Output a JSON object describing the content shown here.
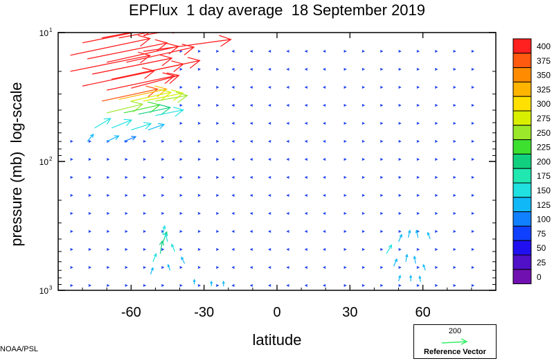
{
  "title": "EPFlux  1 day average  18 September 2019",
  "credit": "NOAA/PSL",
  "reference": {
    "value": "200",
    "label": "Reference Vector",
    "color": "#33ee66"
  },
  "chart_data": {
    "type": "vector-field",
    "title": "EPFlux  1 day average  18 September 2019",
    "xlabel": "latitude",
    "ylabel": "pressure (mb)  log-scale",
    "xlim": [
      -90,
      90
    ],
    "ylim": [
      1000,
      10
    ],
    "yscale": "log",
    "xticks": [
      {
        "value": -60,
        "label": "-60"
      },
      {
        "value": -30,
        "label": "-30"
      },
      {
        "value": 0,
        "label": "0"
      },
      {
        "value": 30,
        "label": "30"
      },
      {
        "value": 60,
        "label": "60"
      }
    ],
    "yticks": [
      {
        "value": 10,
        "base": "10",
        "exp": "1"
      },
      {
        "value": 100,
        "base": "10",
        "exp": "2"
      },
      {
        "value": 1000,
        "base": "10",
        "exp": "3"
      }
    ],
    "colorbar": {
      "levels": [
        "400",
        "375",
        "350",
        "325",
        "300",
        "275",
        "250",
        "225",
        "200",
        "175",
        "150",
        "125",
        "100",
        "75",
        "50",
        "25",
        "0"
      ],
      "colors": [
        "#ff2020",
        "#ff5a10",
        "#ff8c00",
        "#ffb400",
        "#ffe000",
        "#d8f000",
        "#9be82a",
        "#3ee030",
        "#10d080",
        "#20e8b0",
        "#20e0e0",
        "#10b8f8",
        "#1080ff",
        "#1040ff",
        "#2010f0",
        "#5010c8",
        "#7010b0"
      ]
    },
    "vectors": [
      {
        "lat": -80,
        "p": 12,
        "du": 18,
        "dv": 0.9,
        "mag": 420
      },
      {
        "lat": -72,
        "p": 11,
        "du": 18,
        "dv": 0.85,
        "mag": 430
      },
      {
        "lat": -65,
        "p": 11,
        "du": 16,
        "dv": 0.75,
        "mag": 420
      },
      {
        "lat": -55,
        "p": 10.5,
        "du": 15,
        "dv": 0.65,
        "mag": 410
      },
      {
        "lat": -85,
        "p": 15,
        "du": 20,
        "dv": 1.05,
        "mag": 430
      },
      {
        "lat": -78,
        "p": 16,
        "du": 20,
        "dv": 1.0,
        "mag": 430
      },
      {
        "lat": -70,
        "p": 17,
        "du": 18,
        "dv": 1.0,
        "mag": 420
      },
      {
        "lat": -62,
        "p": 17,
        "du": 17,
        "dv": 0.95,
        "mag": 420
      },
      {
        "lat": -55,
        "p": 14,
        "du": 22,
        "dv": 0.75,
        "mag": 430
      },
      {
        "lat": -85,
        "p": 20,
        "du": 20,
        "dv": 1.0,
        "mag": 430
      },
      {
        "lat": -76,
        "p": 21,
        "du": 20,
        "dv": 1.0,
        "mag": 430
      },
      {
        "lat": -68,
        "p": 23,
        "du": 18,
        "dv": 0.95,
        "mag": 420
      },
      {
        "lat": -58,
        "p": 21,
        "du": 16,
        "dv": 0.85,
        "mag": 420
      },
      {
        "lat": -80,
        "p": 26,
        "du": 18,
        "dv": 0.95,
        "mag": 420
      },
      {
        "lat": -70,
        "p": 28,
        "du": 17,
        "dv": 0.9,
        "mag": 410
      },
      {
        "lat": -60,
        "p": 27,
        "du": 12,
        "dv": 0.8,
        "mag": 400
      },
      {
        "lat": -72,
        "p": 34,
        "du": 14,
        "dv": 0.75,
        "mag": 380
      },
      {
        "lat": -65,
        "p": 33,
        "du": 12,
        "dv": 0.65,
        "mag": 330
      },
      {
        "lat": -60,
        "p": 34,
        "du": 10,
        "dv": 0.55,
        "mag": 290
      },
      {
        "lat": -55,
        "p": 34,
        "du": 10,
        "dv": 0.5,
        "mag": 280
      },
      {
        "lat": -50,
        "p": 34,
        "du": 8,
        "dv": 0.35,
        "mag": 260
      },
      {
        "lat": -70,
        "p": 42,
        "du": 9,
        "dv": 0.55,
        "mag": 260
      },
      {
        "lat": -63,
        "p": 42,
        "du": 9,
        "dv": 0.5,
        "mag": 230
      },
      {
        "lat": -57,
        "p": 43,
        "du": 8,
        "dv": 0.42,
        "mag": 200
      },
      {
        "lat": -50,
        "p": 44,
        "du": 7,
        "dv": 0.35,
        "mag": 170
      },
      {
        "lat": -75,
        "p": 55,
        "du": 4,
        "dv": 0.6,
        "mag": 170
      },
      {
        "lat": -68,
        "p": 55,
        "du": 5,
        "dv": 0.5,
        "mag": 160
      },
      {
        "lat": -60,
        "p": 57,
        "du": 5,
        "dv": 0.4,
        "mag": 150
      },
      {
        "lat": -53,
        "p": 57,
        "du": 4,
        "dv": 0.35,
        "mag": 140
      },
      {
        "lat": -78,
        "p": 70,
        "du": 1.5,
        "dv": 0.45,
        "mag": 140
      },
      {
        "lat": -70,
        "p": 70,
        "du": 3,
        "dv": 0.35,
        "mag": 125
      },
      {
        "lat": -63,
        "p": 70,
        "du": 3,
        "dv": 0.3,
        "mag": 110
      },
      {
        "lat": -47,
        "p": 370,
        "du": 0.5,
        "dv": 0.55,
        "mag": 150
      },
      {
        "lat": -47,
        "p": 430,
        "du": 1.0,
        "dv": 0.7,
        "mag": 200
      },
      {
        "lat": -48,
        "p": 520,
        "du": 0.5,
        "dv": 0.8,
        "mag": 220
      },
      {
        "lat": -45,
        "p": 420,
        "du": -0.5,
        "dv": 0.5,
        "mag": 160
      },
      {
        "lat": -42,
        "p": 500,
        "du": -0.8,
        "dv": 0.45,
        "mag": 150
      },
      {
        "lat": -38,
        "p": 620,
        "du": -0.8,
        "dv": 0.4,
        "mag": 140
      },
      {
        "lat": -51,
        "p": 600,
        "du": 0.8,
        "dv": 0.5,
        "mag": 150
      },
      {
        "lat": -52,
        "p": 750,
        "du": 0.6,
        "dv": 0.4,
        "mag": 140
      },
      {
        "lat": -44,
        "p": 700,
        "du": -0.5,
        "dv": 0.35,
        "mag": 130
      },
      {
        "lat": -34,
        "p": 900,
        "du": 0,
        "dv": 0.3,
        "mag": 125
      },
      {
        "lat": -27,
        "p": 930,
        "du": 0,
        "dv": 0.3,
        "mag": 130
      },
      {
        "lat": -22,
        "p": 930,
        "du": 0,
        "dv": 0.3,
        "mag": 130
      },
      {
        "lat": 45,
        "p": 520,
        "du": 1.3,
        "dv": 0.55,
        "mag": 150
      },
      {
        "lat": 50,
        "p": 420,
        "du": 0.8,
        "dv": 0.45,
        "mag": 140
      },
      {
        "lat": 54,
        "p": 390,
        "du": 0.4,
        "dv": 0.45,
        "mag": 130
      },
      {
        "lat": 58,
        "p": 390,
        "du": -0.4,
        "dv": 0.45,
        "mag": 130
      },
      {
        "lat": 63,
        "p": 400,
        "du": -0.6,
        "dv": 0.4,
        "mag": 125
      },
      {
        "lat": 48,
        "p": 650,
        "du": 0.8,
        "dv": 0.45,
        "mag": 140
      },
      {
        "lat": 53,
        "p": 600,
        "du": 0.3,
        "dv": 0.45,
        "mag": 135
      },
      {
        "lat": 57,
        "p": 620,
        "du": -0.3,
        "dv": 0.45,
        "mag": 135
      },
      {
        "lat": 61,
        "p": 700,
        "du": -0.5,
        "dv": 0.35,
        "mag": 125
      },
      {
        "lat": 50,
        "p": 850,
        "du": 0.4,
        "dv": 0.35,
        "mag": 125
      },
      {
        "lat": 55,
        "p": 850,
        "du": 0,
        "dv": 0.35,
        "mag": 125
      },
      {
        "lat": 59,
        "p": 860,
        "du": -0.2,
        "dv": 0.35,
        "mag": 125
      }
    ]
  }
}
